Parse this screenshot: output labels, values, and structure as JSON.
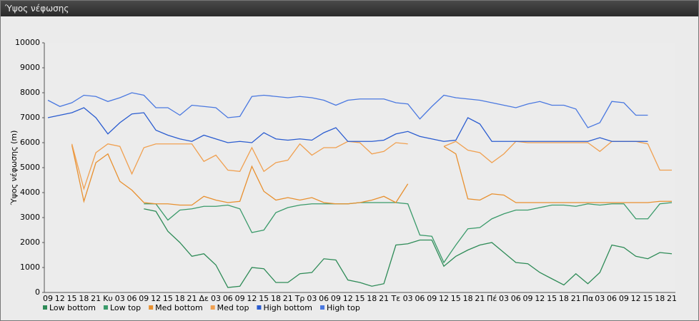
{
  "chart_data": {
    "type": "line",
    "title": "Ύψος νέφωσης",
    "y_label": "Ύψος νέφωσης (m)",
    "categories": [
      "09",
      "12",
      "15",
      "18",
      "21",
      "Κυ",
      "03",
      "06",
      "09",
      "12",
      "15",
      "18",
      "21",
      "Δε",
      "03",
      "06",
      "09",
      "12",
      "15",
      "18",
      "21",
      "Τρ",
      "03",
      "06",
      "09",
      "12",
      "15",
      "18",
      "21",
      "Τε",
      "03",
      "06",
      "09",
      "12",
      "15",
      "18",
      "21",
      "Πέ",
      "03",
      "06",
      "09",
      "12",
      "15",
      "18",
      "21",
      "Πα",
      "03",
      "06",
      "09",
      "12",
      "15",
      "18",
      "21"
    ],
    "ylim": [
      0,
      10000
    ],
    "yticks": [
      0,
      1000,
      2000,
      3000,
      4000,
      5000,
      6000,
      7000,
      8000,
      9000,
      10000
    ],
    "grid": false,
    "legend": "bottom",
    "series": [
      {
        "name": "Low bottom",
        "color": "#2e8b57",
        "values": [
          null,
          null,
          null,
          null,
          null,
          null,
          null,
          null,
          3350,
          3250,
          2450,
          2000,
          1450,
          1550,
          1100,
          200,
          250,
          1000,
          950,
          400,
          400,
          750,
          800,
          1350,
          1300,
          500,
          400,
          250,
          350,
          1900,
          1950,
          2100,
          2100,
          1050,
          1450,
          1700,
          1900,
          2000,
          1600,
          1200,
          1150,
          800,
          550,
          300,
          750,
          350,
          800,
          1900,
          1800,
          1450,
          1350,
          1600,
          1550
        ]
      },
      {
        "name": "Low top",
        "color": "#3a9a6a",
        "values": [
          null,
          null,
          null,
          null,
          null,
          null,
          null,
          null,
          3550,
          3550,
          2900,
          3300,
          3350,
          3450,
          3450,
          3500,
          3350,
          2400,
          2500,
          3200,
          3400,
          3500,
          3550,
          3550,
          3550,
          3550,
          3600,
          3600,
          3600,
          3600,
          3550,
          2300,
          2250,
          1200,
          1900,
          2550,
          2600,
          2950,
          3150,
          3300,
          3300,
          3400,
          3500,
          3500,
          3450,
          3550,
          3500,
          3550,
          3550,
          2950,
          2950,
          3550,
          3600
        ]
      },
      {
        "name": "Med bottom",
        "color": "#e8902f",
        "values": [
          null,
          null,
          5900,
          3650,
          5200,
          5550,
          4450,
          4100,
          3600,
          3550,
          3550,
          3500,
          3500,
          3850,
          3700,
          3600,
          3650,
          5050,
          4050,
          3700,
          3800,
          3700,
          3800,
          3600,
          3550,
          3550,
          3600,
          3700,
          3850,
          3600,
          4350,
          null,
          null,
          5850,
          5550,
          3750,
          3700,
          3950,
          3900,
          3600,
          3600,
          3600,
          3600,
          3600,
          3600,
          3600,
          3600,
          3600,
          3600,
          3600,
          3600,
          3650,
          3650
        ]
      },
      {
        "name": "Med top",
        "color": "#f0a050",
        "values": [
          null,
          null,
          5950,
          4150,
          5600,
          5950,
          5850,
          4750,
          5800,
          5950,
          5950,
          5950,
          5950,
          5250,
          5500,
          4900,
          4850,
          5800,
          4850,
          5200,
          5300,
          5950,
          5500,
          5800,
          5800,
          6050,
          6000,
          5550,
          5650,
          6000,
          5950,
          null,
          null,
          5850,
          6050,
          5700,
          5600,
          5200,
          5550,
          6050,
          6000,
          6000,
          6000,
          6000,
          6000,
          6000,
          5650,
          6050,
          6050,
          6050,
          5950,
          4900,
          4900
        ]
      },
      {
        "name": "High bottom",
        "color": "#2a5cd0",
        "values": [
          7000,
          7100,
          7200,
          7400,
          7000,
          6350,
          6800,
          7150,
          7200,
          6500,
          6300,
          6150,
          6050,
          6300,
          6150,
          6000,
          6050,
          6000,
          6400,
          6150,
          6100,
          6150,
          6100,
          6400,
          6600,
          6050,
          6050,
          6050,
          6100,
          6350,
          6450,
          6250,
          6150,
          6050,
          6100,
          7000,
          6750,
          6050,
          6050,
          6050,
          6050,
          6050,
          6050,
          6050,
          6050,
          6050,
          6200,
          6050,
          6050,
          6050,
          6050,
          null,
          null
        ]
      },
      {
        "name": "High top",
        "color": "#4a78e0",
        "values": [
          7700,
          7450,
          7600,
          7900,
          7850,
          7650,
          7800,
          8000,
          7900,
          7400,
          7400,
          7100,
          7500,
          7450,
          7400,
          7000,
          7050,
          7850,
          7900,
          7850,
          7800,
          7850,
          7800,
          7700,
          7500,
          7700,
          7750,
          7750,
          7750,
          7600,
          7550,
          6950,
          7450,
          7900,
          7800,
          7750,
          7700,
          7600,
          7500,
          7400,
          7550,
          7650,
          7500,
          7500,
          7350,
          6600,
          6800,
          7650,
          7600,
          7100,
          7100,
          null,
          null
        ]
      }
    ]
  }
}
